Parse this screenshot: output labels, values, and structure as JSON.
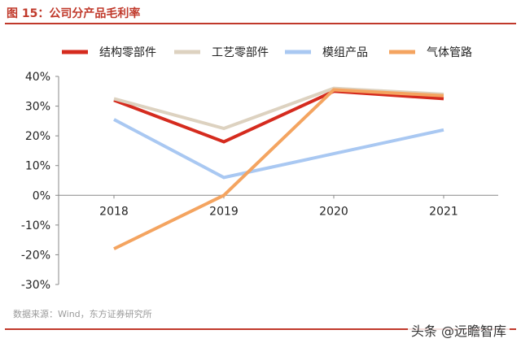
{
  "title": "图 15：公司分产品毛利率",
  "source": "数据来源：Wind，东方证券研究所",
  "watermark": "头条 @远瞻智库",
  "chart_data": {
    "type": "line",
    "categories": [
      "2018",
      "2019",
      "2020",
      "2021"
    ],
    "y_ticks": [
      "40%",
      "30%",
      "20%",
      "10%",
      "0%",
      "-10%",
      "-20%",
      "-30%"
    ],
    "ylim": [
      -30,
      40
    ],
    "unit": "%",
    "legend_position": "top",
    "series": [
      {
        "name": "结构零部件",
        "color": "#d52b1e",
        "values": [
          32,
          18,
          35,
          32.5
        ]
      },
      {
        "name": "工艺零部件",
        "color": "#ddd2c0",
        "values": [
          32.5,
          22.5,
          36,
          34
        ]
      },
      {
        "name": "模组产品",
        "color": "#a9c8f2",
        "values": [
          25.5,
          6,
          14,
          22
        ]
      },
      {
        "name": "气体管路",
        "color": "#f4a460",
        "values": [
          -18,
          0,
          35.5,
          33.5
        ]
      }
    ]
  }
}
